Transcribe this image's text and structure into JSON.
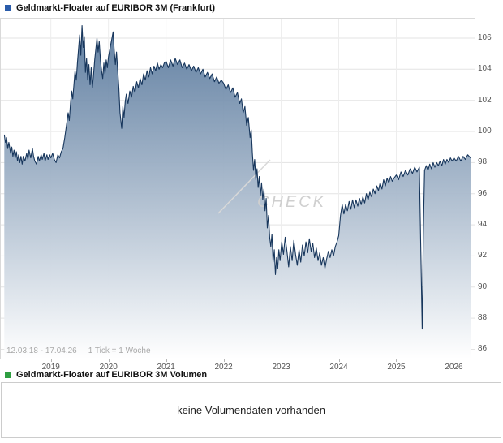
{
  "header": {
    "title": "Geldmarkt-Floater auf EURIBOR 3M (Frankfurt)",
    "marker_color": "#2a5caa"
  },
  "footer": {
    "range": "12.03.18 - 17.04.26",
    "tick_note": "1 Tick = 1 Woche"
  },
  "watermark": "CHECK",
  "volume_panel": {
    "title": "Geldmarkt-Floater auf EURIBOR 3M Volumen",
    "marker_color": "#2f9e41",
    "message": "keine Volumendaten vorhanden"
  },
  "chart_data": {
    "type": "area",
    "title": "Geldmarkt-Floater auf EURIBOR 3M (Frankfurt)",
    "xlabel": "",
    "ylabel": "",
    "x_unit": "year",
    "tick_interval": "1 Woche",
    "x_ticks": [
      2019,
      2020,
      2021,
      2022,
      2023,
      2024,
      2025,
      2026
    ],
    "y_ticks": [
      86,
      88,
      90,
      92,
      94,
      96,
      98,
      100,
      102,
      104,
      106
    ],
    "xlim": [
      2018.13,
      2026.36
    ],
    "ylim": [
      85.4,
      107.25
    ],
    "grid": true,
    "legend": "none",
    "line_color": "#17365c",
    "fill_top": "#54759a",
    "fill_bottom": "#ffffff",
    "points": [
      [
        2018.19,
        99.8
      ],
      [
        2018.21,
        99.3
      ],
      [
        2018.23,
        99.6
      ],
      [
        2018.25,
        98.9
      ],
      [
        2018.27,
        99.3
      ],
      [
        2018.3,
        98.6
      ],
      [
        2018.32,
        99.0
      ],
      [
        2018.34,
        98.4
      ],
      [
        2018.36,
        98.8
      ],
      [
        2018.38,
        98.3
      ],
      [
        2018.4,
        98.7
      ],
      [
        2018.42,
        98.1
      ],
      [
        2018.44,
        98.5
      ],
      [
        2018.46,
        98.0
      ],
      [
        2018.48,
        98.4
      ],
      [
        2018.5,
        97.9
      ],
      [
        2018.52,
        98.4
      ],
      [
        2018.55,
        98.1
      ],
      [
        2018.58,
        98.6
      ],
      [
        2018.6,
        98.2
      ],
      [
        2018.62,
        98.8
      ],
      [
        2018.65,
        98.3
      ],
      [
        2018.68,
        98.9
      ],
      [
        2018.7,
        98.4
      ],
      [
        2018.72,
        98.1
      ],
      [
        2018.75,
        97.9
      ],
      [
        2018.78,
        98.4
      ],
      [
        2018.8,
        98.1
      ],
      [
        2018.83,
        98.5
      ],
      [
        2018.85,
        98.2
      ],
      [
        2018.88,
        98.6
      ],
      [
        2018.9,
        98.1
      ],
      [
        2018.93,
        98.5
      ],
      [
        2018.95,
        98.2
      ],
      [
        2018.98,
        98.5
      ],
      [
        2019.0,
        98.3
      ],
      [
        2019.03,
        98.6
      ],
      [
        2019.06,
        98.2
      ],
      [
        2019.09,
        98.0
      ],
      [
        2019.12,
        98.5
      ],
      [
        2019.15,
        98.3
      ],
      [
        2019.18,
        98.7
      ],
      [
        2019.21,
        98.9
      ],
      [
        2019.24,
        99.6
      ],
      [
        2019.27,
        100.4
      ],
      [
        2019.3,
        101.2
      ],
      [
        2019.32,
        100.7
      ],
      [
        2019.34,
        101.8
      ],
      [
        2019.36,
        102.6
      ],
      [
        2019.38,
        102.1
      ],
      [
        2019.4,
        103.0
      ],
      [
        2019.42,
        103.9
      ],
      [
        2019.44,
        103.3
      ],
      [
        2019.46,
        104.4
      ],
      [
        2019.48,
        105.3
      ],
      [
        2019.5,
        106.2
      ],
      [
        2019.52,
        104.9
      ],
      [
        2019.54,
        106.8
      ],
      [
        2019.56,
        105.4
      ],
      [
        2019.58,
        106.1
      ],
      [
        2019.6,
        103.8
      ],
      [
        2019.62,
        104.7
      ],
      [
        2019.64,
        103.3
      ],
      [
        2019.66,
        104.3
      ],
      [
        2019.68,
        103.0
      ],
      [
        2019.7,
        104.1
      ],
      [
        2019.72,
        102.8
      ],
      [
        2019.74,
        103.6
      ],
      [
        2019.76,
        104.6
      ],
      [
        2019.78,
        105.3
      ],
      [
        2019.8,
        106.0
      ],
      [
        2019.82,
        105.1
      ],
      [
        2019.84,
        105.8
      ],
      [
        2019.86,
        104.6
      ],
      [
        2019.88,
        103.9
      ],
      [
        2019.9,
        103.4
      ],
      [
        2019.92,
        104.4
      ],
      [
        2019.94,
        103.7
      ],
      [
        2019.96,
        104.6
      ],
      [
        2019.98,
        104.1
      ],
      [
        2020.0,
        104.8
      ],
      [
        2020.03,
        105.4
      ],
      [
        2020.06,
        106.0
      ],
      [
        2020.08,
        106.4
      ],
      [
        2020.1,
        105.2
      ],
      [
        2020.12,
        104.3
      ],
      [
        2020.14,
        105.1
      ],
      [
        2020.16,
        104.0
      ],
      [
        2020.18,
        102.8
      ],
      [
        2020.2,
        101.2
      ],
      [
        2020.23,
        100.2
      ],
      [
        2020.25,
        101.6
      ],
      [
        2020.27,
        100.9
      ],
      [
        2020.29,
        101.9
      ],
      [
        2020.31,
        102.4
      ],
      [
        2020.34,
        101.8
      ],
      [
        2020.37,
        102.6
      ],
      [
        2020.4,
        102.2
      ],
      [
        2020.43,
        102.9
      ],
      [
        2020.46,
        102.5
      ],
      [
        2020.49,
        103.2
      ],
      [
        2020.52,
        102.8
      ],
      [
        2020.55,
        103.4
      ],
      [
        2020.58,
        103.0
      ],
      [
        2020.61,
        103.7
      ],
      [
        2020.64,
        103.3
      ],
      [
        2020.67,
        103.9
      ],
      [
        2020.7,
        103.5
      ],
      [
        2020.73,
        104.1
      ],
      [
        2020.76,
        103.7
      ],
      [
        2020.79,
        104.2
      ],
      [
        2020.82,
        103.9
      ],
      [
        2020.85,
        104.4
      ],
      [
        2020.88,
        104.0
      ],
      [
        2020.91,
        104.3
      ],
      [
        2020.94,
        104.1
      ],
      [
        2020.97,
        104.4
      ],
      [
        2021.0,
        104.5
      ],
      [
        2021.04,
        104.1
      ],
      [
        2021.08,
        104.6
      ],
      [
        2021.12,
        104.2
      ],
      [
        2021.16,
        104.7
      ],
      [
        2021.2,
        104.3
      ],
      [
        2021.24,
        104.6
      ],
      [
        2021.28,
        104.1
      ],
      [
        2021.32,
        104.4
      ],
      [
        2021.36,
        104.0
      ],
      [
        2021.4,
        104.3
      ],
      [
        2021.44,
        103.9
      ],
      [
        2021.48,
        104.2
      ],
      [
        2021.52,
        103.8
      ],
      [
        2021.56,
        104.1
      ],
      [
        2021.6,
        103.7
      ],
      [
        2021.64,
        104.0
      ],
      [
        2021.68,
        103.5
      ],
      [
        2021.72,
        103.8
      ],
      [
        2021.76,
        103.4
      ],
      [
        2021.8,
        103.7
      ],
      [
        2021.84,
        103.2
      ],
      [
        2021.88,
        103.5
      ],
      [
        2021.92,
        103.1
      ],
      [
        2021.96,
        103.3
      ],
      [
        2022.0,
        103.1
      ],
      [
        2022.04,
        102.7
      ],
      [
        2022.08,
        103.0
      ],
      [
        2022.12,
        102.5
      ],
      [
        2022.16,
        102.8
      ],
      [
        2022.2,
        102.2
      ],
      [
        2022.24,
        102.5
      ],
      [
        2022.28,
        101.8
      ],
      [
        2022.31,
        102.1
      ],
      [
        2022.34,
        101.2
      ],
      [
        2022.37,
        101.6
      ],
      [
        2022.4,
        100.4
      ],
      [
        2022.43,
        100.9
      ],
      [
        2022.46,
        99.6
      ],
      [
        2022.48,
        100.1
      ],
      [
        2022.5,
        98.6
      ],
      [
        2022.52,
        97.5
      ],
      [
        2022.54,
        98.2
      ],
      [
        2022.56,
        96.9
      ],
      [
        2022.58,
        97.6
      ],
      [
        2022.6,
        96.4
      ],
      [
        2022.62,
        97.1
      ],
      [
        2022.64,
        95.9
      ],
      [
        2022.66,
        96.7
      ],
      [
        2022.68,
        95.6
      ],
      [
        2022.7,
        96.3
      ],
      [
        2022.72,
        94.9
      ],
      [
        2022.74,
        95.7
      ],
      [
        2022.76,
        93.8
      ],
      [
        2022.78,
        94.6
      ],
      [
        2022.8,
        93.2
      ],
      [
        2022.82,
        92.6
      ],
      [
        2022.84,
        93.4
      ],
      [
        2022.86,
        91.6
      ],
      [
        2022.88,
        92.4
      ],
      [
        2022.9,
        90.8
      ],
      [
        2022.92,
        91.9
      ],
      [
        2022.94,
        91.2
      ],
      [
        2022.96,
        92.4
      ],
      [
        2022.98,
        91.7
      ],
      [
        2023.01,
        92.9
      ],
      [
        2023.04,
        92.1
      ],
      [
        2023.07,
        93.2
      ],
      [
        2023.1,
        92.3
      ],
      [
        2023.13,
        91.3
      ],
      [
        2023.16,
        92.6
      ],
      [
        2023.19,
        91.7
      ],
      [
        2023.22,
        93.0
      ],
      [
        2023.25,
        92.1
      ],
      [
        2023.28,
        91.4
      ],
      [
        2023.31,
        92.4
      ],
      [
        2023.34,
        91.6
      ],
      [
        2023.37,
        92.7
      ],
      [
        2023.4,
        92.0
      ],
      [
        2023.43,
        92.9
      ],
      [
        2023.46,
        92.2
      ],
      [
        2023.49,
        93.1
      ],
      [
        2023.52,
        92.3
      ],
      [
        2023.55,
        92.8
      ],
      [
        2023.58,
        91.9
      ],
      [
        2023.61,
        92.5
      ],
      [
        2023.64,
        91.7
      ],
      [
        2023.67,
        92.2
      ],
      [
        2023.7,
        91.4
      ],
      [
        2023.73,
        91.9
      ],
      [
        2023.76,
        91.2
      ],
      [
        2023.79,
        91.8
      ],
      [
        2023.82,
        92.3
      ],
      [
        2023.85,
        91.9
      ],
      [
        2023.88,
        92.4
      ],
      [
        2023.91,
        92.0
      ],
      [
        2023.94,
        92.6
      ],
      [
        2023.97,
        92.9
      ],
      [
        2024.0,
        93.3
      ],
      [
        2024.03,
        94.6
      ],
      [
        2024.06,
        95.3
      ],
      [
        2024.09,
        94.7
      ],
      [
        2024.12,
        95.3
      ],
      [
        2024.15,
        94.9
      ],
      [
        2024.18,
        95.5
      ],
      [
        2024.21,
        95.0
      ],
      [
        2024.24,
        95.6
      ],
      [
        2024.27,
        95.1
      ],
      [
        2024.3,
        95.6
      ],
      [
        2024.33,
        95.2
      ],
      [
        2024.36,
        95.7
      ],
      [
        2024.39,
        95.3
      ],
      [
        2024.42,
        95.8
      ],
      [
        2024.45,
        95.4
      ],
      [
        2024.48,
        96.0
      ],
      [
        2024.51,
        95.6
      ],
      [
        2024.54,
        96.1
      ],
      [
        2024.57,
        95.8
      ],
      [
        2024.6,
        96.3
      ],
      [
        2024.63,
        96.0
      ],
      [
        2024.66,
        96.5
      ],
      [
        2024.69,
        96.2
      ],
      [
        2024.72,
        96.7
      ],
      [
        2024.75,
        96.3
      ],
      [
        2024.78,
        96.9
      ],
      [
        2024.81,
        96.5
      ],
      [
        2024.84,
        97.0
      ],
      [
        2024.87,
        96.7
      ],
      [
        2024.9,
        97.1
      ],
      [
        2024.93,
        96.8
      ],
      [
        2024.96,
        97.0
      ],
      [
        2025.0,
        97.2
      ],
      [
        2025.04,
        96.9
      ],
      [
        2025.08,
        97.4
      ],
      [
        2025.12,
        97.1
      ],
      [
        2025.16,
        97.5
      ],
      [
        2025.2,
        97.2
      ],
      [
        2025.24,
        97.6
      ],
      [
        2025.28,
        97.3
      ],
      [
        2025.32,
        97.7
      ],
      [
        2025.36,
        97.4
      ],
      [
        2025.4,
        97.7
      ],
      [
        2025.43,
        91.5
      ],
      [
        2025.45,
        87.3
      ],
      [
        2025.47,
        93.5
      ],
      [
        2025.49,
        97.5
      ],
      [
        2025.52,
        97.8
      ],
      [
        2025.55,
        97.5
      ],
      [
        2025.58,
        97.9
      ],
      [
        2025.61,
        97.6
      ],
      [
        2025.64,
        98.0
      ],
      [
        2025.67,
        97.7
      ],
      [
        2025.7,
        98.0
      ],
      [
        2025.73,
        97.8
      ],
      [
        2025.76,
        98.1
      ],
      [
        2025.79,
        97.8
      ],
      [
        2025.82,
        98.2
      ],
      [
        2025.85,
        97.9
      ],
      [
        2025.88,
        98.2
      ],
      [
        2025.91,
        98.0
      ],
      [
        2025.94,
        98.3
      ],
      [
        2025.97,
        98.1
      ],
      [
        2026.0,
        98.3
      ],
      [
        2026.04,
        98.1
      ],
      [
        2026.08,
        98.4
      ],
      [
        2026.12,
        98.1
      ],
      [
        2026.16,
        98.4
      ],
      [
        2026.2,
        98.2
      ],
      [
        2026.24,
        98.5
      ],
      [
        2026.29,
        98.3
      ]
    ]
  }
}
